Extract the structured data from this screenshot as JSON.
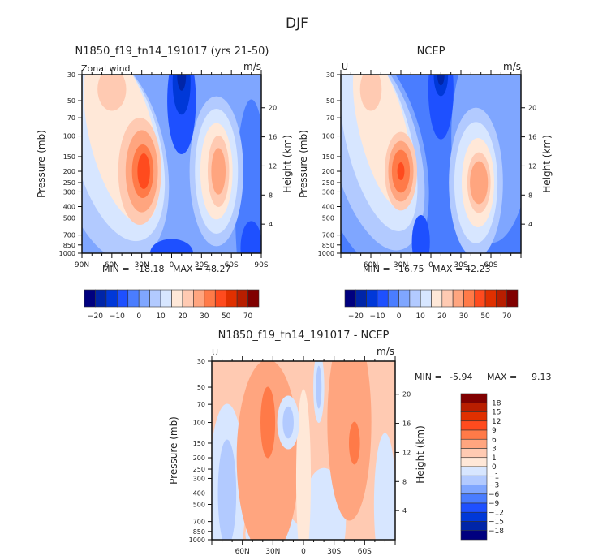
{
  "figure": {
    "title": "DJF"
  },
  "chart_data": [
    {
      "type": "heatmap",
      "id": "model",
      "title": "N1850_f19_tn14_191017 (yrs 21-50)",
      "left_label": "Zonal wind",
      "units": "m/s",
      "ylabel": "Pressure (mb)",
      "y2label": "Height (km)",
      "x_ticks": [
        "90N",
        "60N",
        "30N",
        "0",
        "30S",
        "60S",
        "90S"
      ],
      "x_range": [
        90,
        -90
      ],
      "y_ticks": [
        "30",
        "50",
        "70",
        "100",
        "150",
        "200",
        "250",
        "300",
        "400",
        "500",
        "700",
        "850",
        "1000"
      ],
      "y_range_mb": [
        1000,
        30
      ],
      "y2_ticks": [
        "20",
        "16",
        "12",
        "8",
        "4"
      ],
      "min": "-18.18",
      "max": "48.27",
      "min_label": "MIN =",
      "max_label": "MAX =",
      "colorbar_levels": [
        "-20",
        "-15",
        "-10",
        "-5",
        "0",
        "5",
        "10",
        "15",
        "20",
        "25",
        "30",
        "40",
        "50",
        "60",
        "70"
      ],
      "colorbar_labels": [
        "-20",
        "-10",
        "0",
        "10",
        "20",
        "30",
        "50",
        "70"
      ],
      "features": [
        {
          "desc": "NH subtropical jet core",
          "lat": 30,
          "p_mb": 200,
          "value_approx": 45
        },
        {
          "desc": "SH jet core",
          "lat": -45,
          "p_mb": 200,
          "value_approx": 30
        },
        {
          "desc": "Stratospheric easterlies",
          "lat": -10,
          "p_mb": 30,
          "value_approx": -18
        }
      ]
    },
    {
      "type": "heatmap",
      "id": "obs",
      "title": "NCEP",
      "left_label": "U",
      "units": "m/s",
      "ylabel": "Pressure (mb)",
      "y2label": "Height (km)",
      "x_ticks": [
        "60N",
        "30N",
        "0",
        "30S",
        "60S"
      ],
      "y_ticks": [
        "30",
        "50",
        "70",
        "100",
        "150",
        "200",
        "250",
        "300",
        "400",
        "500",
        "700",
        "850",
        "1000"
      ],
      "y2_ticks": [
        "20",
        "16",
        "12",
        "8",
        "4"
      ],
      "min": "-16.75",
      "max": "42.23",
      "min_label": "MIN =",
      "max_label": "MAX =",
      "colorbar_labels": [
        "-20",
        "-10",
        "0",
        "10",
        "20",
        "30",
        "50",
        "70"
      ],
      "features": [
        {
          "desc": "NH subtropical jet core",
          "lat": 30,
          "p_mb": 200,
          "value_approx": 40
        },
        {
          "desc": "SH jet core",
          "lat": -45,
          "p_mb": 250,
          "value_approx": 25
        },
        {
          "desc": "Stratospheric easterlies",
          "lat": -10,
          "p_mb": 30,
          "value_approx": -15
        }
      ]
    },
    {
      "type": "heatmap",
      "id": "diff",
      "title": "N1850_f19_tn14_191017 - NCEP",
      "left_label": "U",
      "units": "m/s",
      "ylabel": "Pressure (mb)",
      "y2label": "Height (km)",
      "x_ticks": [
        "60N",
        "30N",
        "0",
        "30S",
        "60S"
      ],
      "y_ticks": [
        "30",
        "50",
        "70",
        "100",
        "150",
        "200",
        "250",
        "300",
        "400",
        "500",
        "700",
        "850",
        "1000"
      ],
      "y2_ticks": [
        "20",
        "16",
        "12",
        "8",
        "4"
      ],
      "min": "-5.94",
      "max": "9.13",
      "min_label": "MIN =",
      "max_label": "MAX =",
      "colorbar_labels": [
        "18",
        "15",
        "12",
        "9",
        "6",
        "3",
        "1",
        "0",
        "-1",
        "-3",
        "-6",
        "-9",
        "-12",
        "-15",
        "-18"
      ],
      "features": [
        {
          "desc": "positive bias NH",
          "lat": 35,
          "p_mb": 100,
          "value_approx": 8
        },
        {
          "desc": "positive bias SH",
          "lat": -50,
          "p_mb": 150,
          "value_approx": 7
        },
        {
          "desc": "negative bias tropics",
          "lat": 15,
          "p_mb": 70,
          "value_approx": -3
        }
      ]
    }
  ],
  "palette": [
    "#00007f",
    "#0025a8",
    "#0038d8",
    "#1e50ff",
    "#4a7dff",
    "#7fa6ff",
    "#b2caff",
    "#d7e6ff",
    "#ffe8d8",
    "#ffcab2",
    "#ffa57f",
    "#ff7a48",
    "#ff4b1e",
    "#e03000",
    "#b81e00",
    "#800000"
  ]
}
